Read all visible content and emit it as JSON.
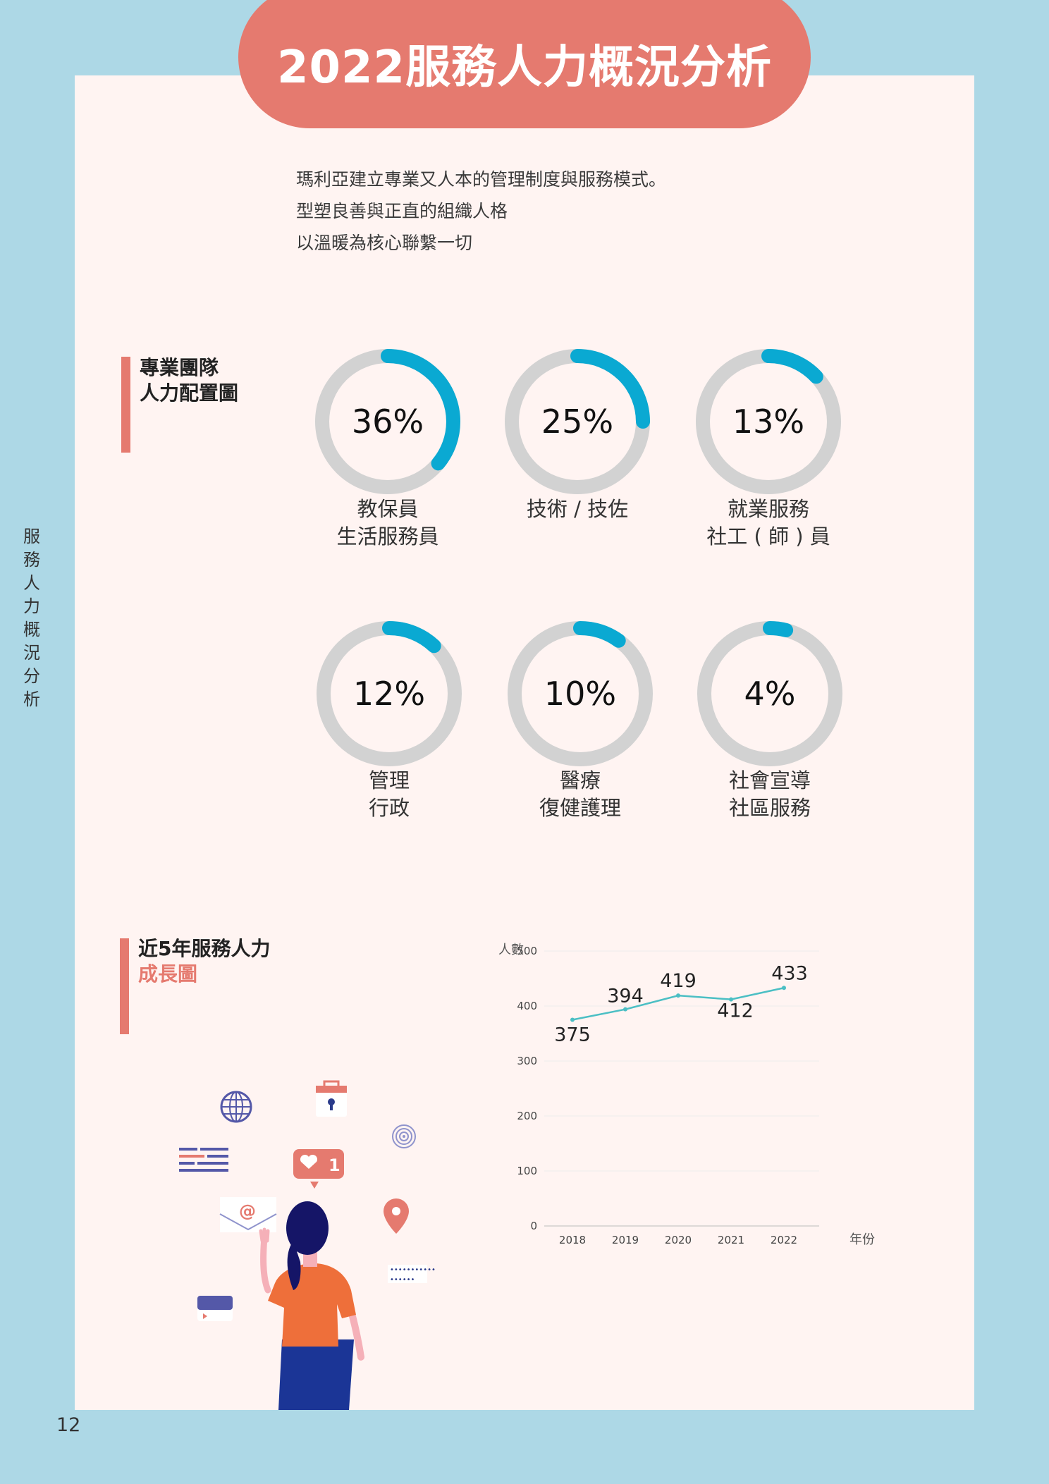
{
  "header": {
    "title": "2022服務人力概況分析"
  },
  "intro": {
    "lines": [
      "瑪利亞建立專業又人本的管理制度與服務模式。",
      "型塑良善與正直的組織人格",
      "以溫暖為核心聯繫一切"
    ]
  },
  "side_title": [
    "服",
    "務",
    "人",
    "力",
    "概",
    "況",
    "分",
    "析"
  ],
  "page_number": "12",
  "section1": {
    "title_line1": "專業團隊",
    "title_line2": "人力配置圖"
  },
  "donuts": [
    {
      "value": 36,
      "pct_label": "36%",
      "label_line1": "教保員",
      "label_line2": "生活服務員"
    },
    {
      "value": 25,
      "pct_label": "25%",
      "label_line1": "技術 / 技佐",
      "label_line2": ""
    },
    {
      "value": 13,
      "pct_label": "13%",
      "label_line1": "就業服務",
      "label_line2": "社工 ( 師 ) 員"
    },
    {
      "value": 12,
      "pct_label": "12%",
      "label_line1": "管理",
      "label_line2": "行政"
    },
    {
      "value": 10,
      "pct_label": "10%",
      "label_line1": "醫療",
      "label_line2": "復健護理"
    },
    {
      "value": 4,
      "pct_label": "4%",
      "label_line1": "社會宣導",
      "label_line2": "社區服務"
    }
  ],
  "section2": {
    "title_line1": "近5年服務人力",
    "title_line2": "成長圖"
  },
  "colors": {
    "accent": "#e57a6f",
    "donut_fill": "#0aa9d2",
    "donut_track": "#d2d2d2",
    "line": "#4bbfc4",
    "background": "#add8e6",
    "panel": "#fff4f2"
  },
  "chart_data": {
    "type": "line",
    "ylabel": "人數",
    "xlabel": "年份",
    "x": [
      "2018",
      "2019",
      "2020",
      "2021",
      "2022"
    ],
    "series": [
      {
        "values": [
          375,
          394,
          419,
          412,
          433
        ]
      }
    ],
    "ylim": [
      0,
      500
    ],
    "yticks": [
      0,
      100,
      200,
      300,
      400,
      500
    ],
    "grid": true
  }
}
